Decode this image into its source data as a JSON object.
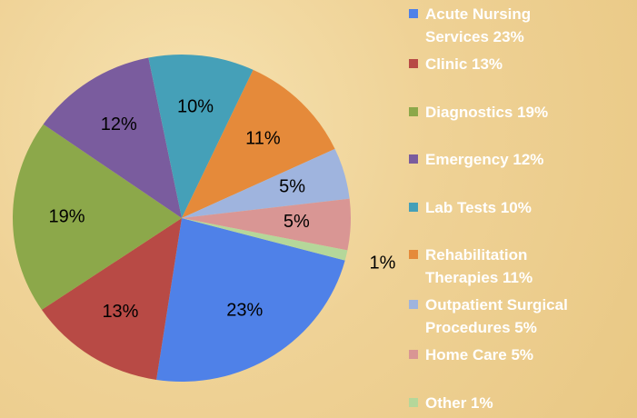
{
  "chart_data": {
    "type": "pie",
    "categories": [
      "Acute Nursing Services 23%",
      "Clinic 13%",
      "Diagnostics 19%",
      "Emergency 12%",
      "Lab Tests 10%",
      "Rehabilitation Therapies 11%",
      "Outpatient Surgical Procedures 5%",
      "Home Care 5%",
      "Other 1%"
    ],
    "values": [
      23,
      13,
      19,
      12,
      10,
      11,
      5,
      5,
      1
    ],
    "value_labels": [
      "23%",
      "13%",
      "19%",
      "12%",
      "10%",
      "11%",
      "5%",
      "5%",
      "1%"
    ],
    "colors": [
      "#4f81e8",
      "#b84a45",
      "#8ca84a",
      "#7a5c9e",
      "#45a0b8",
      "#e58a3a",
      "#9fb4de",
      "#d99694",
      "#b5d79a"
    ],
    "legend": "right"
  }
}
